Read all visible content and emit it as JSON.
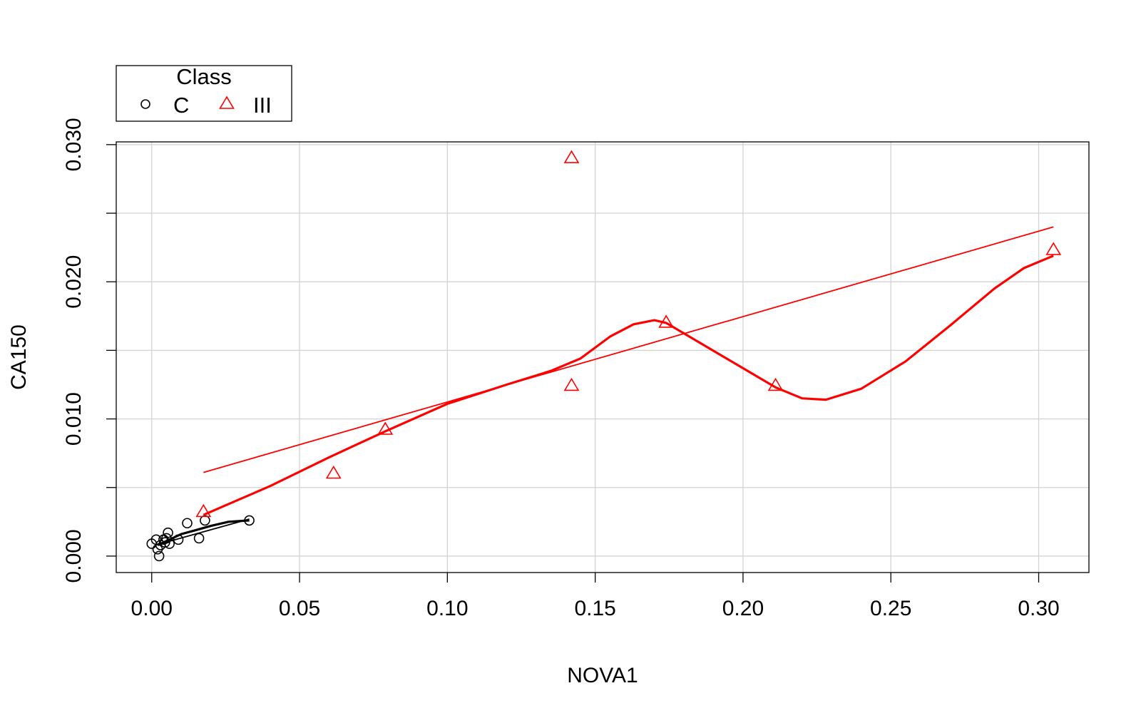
{
  "chart_data": {
    "type": "scatter",
    "xlabel": "NOVA1",
    "ylabel": "CA150",
    "xlim": [
      -0.012,
      0.317
    ],
    "ylim": [
      -0.0012,
      0.0302
    ],
    "x_ticks": [
      "0.00",
      "0.05",
      "0.10",
      "0.15",
      "0.20",
      "0.25",
      "0.30"
    ],
    "y_ticks": [
      "0.000",
      "0.010",
      "0.020",
      "0.030"
    ],
    "grid": true,
    "legend": {
      "title": "Class",
      "position": "top-left outside plot",
      "entries": [
        {
          "label": "C",
          "marker": "circle",
          "color": "#000000"
        },
        {
          "label": "III",
          "marker": "triangle",
          "color": "#ff0000"
        }
      ]
    },
    "series": [
      {
        "name": "C",
        "marker": "circle",
        "color": "#000000",
        "points": [
          [
            0.0,
            0.0009
          ],
          [
            0.0015,
            0.0012
          ],
          [
            0.002,
            0.0005
          ],
          [
            0.0025,
            0.0
          ],
          [
            0.003,
            0.0008
          ],
          [
            0.004,
            0.0012
          ],
          [
            0.0045,
            0.001
          ],
          [
            0.005,
            0.0013
          ],
          [
            0.0055,
            0.0017
          ],
          [
            0.006,
            0.0009
          ],
          [
            0.009,
            0.0012
          ],
          [
            0.012,
            0.0024
          ],
          [
            0.016,
            0.0013
          ],
          [
            0.018,
            0.0026
          ],
          [
            0.033,
            0.0026
          ]
        ],
        "fit_line": [
          [
            0.003,
            0.0009
          ],
          [
            0.033,
            0.0027
          ]
        ],
        "smooth_curve": [
          [
            0.002,
            0.0008
          ],
          [
            0.005,
            0.0011
          ],
          [
            0.01,
            0.0016
          ],
          [
            0.015,
            0.0019
          ],
          [
            0.02,
            0.0022
          ],
          [
            0.026,
            0.0025
          ],
          [
            0.033,
            0.0026
          ]
        ]
      },
      {
        "name": "III",
        "marker": "triangle",
        "color": "#ff0000",
        "points": [
          [
            0.0175,
            0.0032
          ],
          [
            0.0615,
            0.006
          ],
          [
            0.079,
            0.0092
          ],
          [
            0.142,
            0.029
          ],
          [
            0.142,
            0.0124
          ],
          [
            0.174,
            0.017
          ],
          [
            0.211,
            0.0124
          ],
          [
            0.305,
            0.0223
          ]
        ],
        "fit_line": [
          [
            0.0175,
            0.0061
          ],
          [
            0.305,
            0.024
          ]
        ],
        "smooth_curve": [
          [
            0.0175,
            0.003
          ],
          [
            0.04,
            0.0051
          ],
          [
            0.06,
            0.0072
          ],
          [
            0.079,
            0.0091
          ],
          [
            0.1,
            0.0111
          ],
          [
            0.12,
            0.0125
          ],
          [
            0.135,
            0.0135
          ],
          [
            0.145,
            0.0144
          ],
          [
            0.155,
            0.016
          ],
          [
            0.163,
            0.0169
          ],
          [
            0.17,
            0.0172
          ],
          [
            0.174,
            0.017
          ],
          [
            0.185,
            0.0156
          ],
          [
            0.2,
            0.0137
          ],
          [
            0.211,
            0.0123
          ],
          [
            0.22,
            0.0115
          ],
          [
            0.228,
            0.0114
          ],
          [
            0.24,
            0.0122
          ],
          [
            0.255,
            0.0142
          ],
          [
            0.27,
            0.0168
          ],
          [
            0.285,
            0.0195
          ],
          [
            0.295,
            0.021
          ],
          [
            0.305,
            0.0219
          ]
        ]
      }
    ]
  }
}
